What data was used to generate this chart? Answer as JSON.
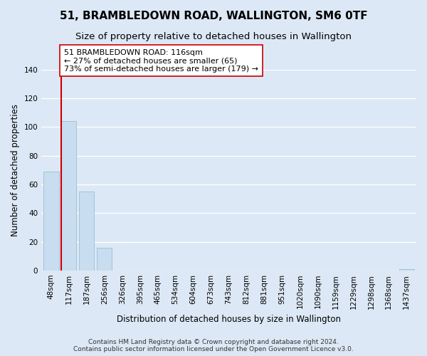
{
  "title": "51, BRAMBLEDOWN ROAD, WALLINGTON, SM6 0TF",
  "subtitle": "Size of property relative to detached houses in Wallington",
  "xlabel": "Distribution of detached houses by size in Wallington",
  "ylabel": "Number of detached properties",
  "bar_labels": [
    "48sqm",
    "117sqm",
    "187sqm",
    "256sqm",
    "326sqm",
    "395sqm",
    "465sqm",
    "534sqm",
    "604sqm",
    "673sqm",
    "743sqm",
    "812sqm",
    "881sqm",
    "951sqm",
    "1020sqm",
    "1090sqm",
    "1159sqm",
    "1229sqm",
    "1298sqm",
    "1368sqm",
    "1437sqm"
  ],
  "bar_values": [
    69,
    104,
    55,
    16,
    0,
    0,
    0,
    0,
    0,
    0,
    0,
    0,
    0,
    0,
    0,
    0,
    0,
    0,
    0,
    0,
    1
  ],
  "bar_color": "#c8ddef",
  "bar_edge_color": "#9bbdd4",
  "subject_line_color": "#cc0000",
  "annotation_text": "51 BRAMBLEDOWN ROAD: 116sqm\n← 27% of detached houses are smaller (65)\n73% of semi-detached houses are larger (179) →",
  "annotation_box_color": "#ffffff",
  "annotation_box_edge_color": "#cc0000",
  "ylim": [
    0,
    140
  ],
  "yticks": [
    0,
    20,
    40,
    60,
    80,
    100,
    120,
    140
  ],
  "plot_bg_color": "#dce8f5",
  "fig_bg_color": "#dce8f5",
  "grid_color": "#ffffff",
  "footer_text": "Contains HM Land Registry data © Crown copyright and database right 2024.\nContains public sector information licensed under the Open Government Licence v3.0.",
  "title_fontsize": 11,
  "subtitle_fontsize": 9.5,
  "xlabel_fontsize": 8.5,
  "ylabel_fontsize": 8.5,
  "annotation_fontsize": 8,
  "footer_fontsize": 6.5,
  "tick_fontsize": 7.5
}
